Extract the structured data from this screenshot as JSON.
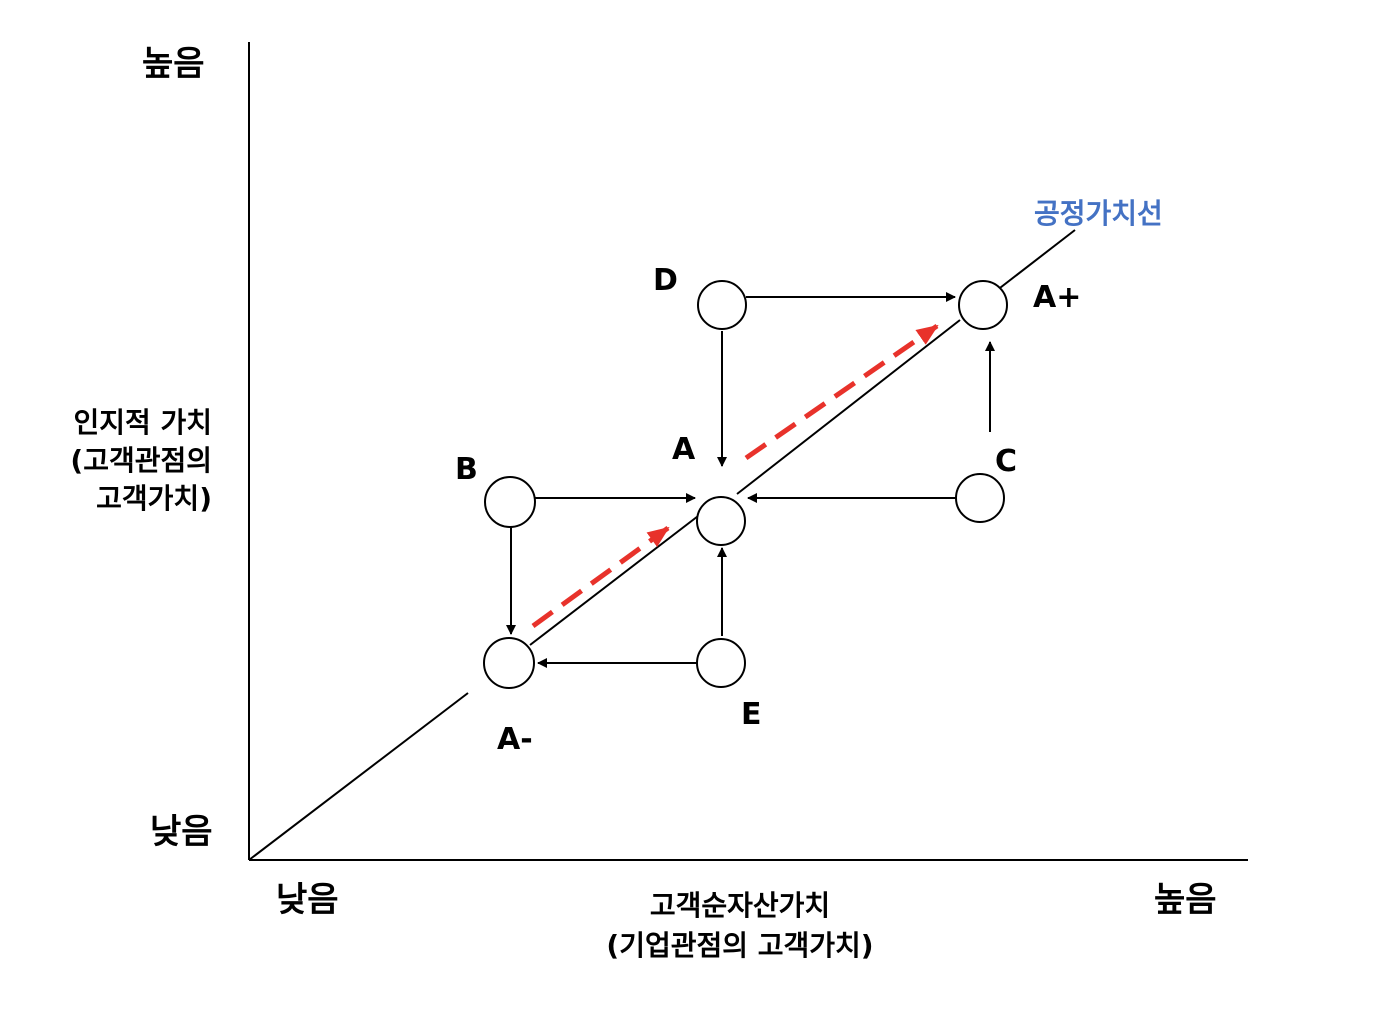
{
  "y_axis": {
    "high": "높음",
    "low": "낮음",
    "label_lines": [
      "인지적 가치",
      "(고객관점의",
      "고객가치)"
    ]
  },
  "x_axis": {
    "low": "낮음",
    "high": "높음",
    "label_lines": [
      "고객순자산가치",
      "(기업관점의 고객가치)"
    ]
  },
  "fair_value_line_label": "공정가치선",
  "nodes": {
    "a_minus": "A-",
    "a": "A",
    "a_plus": "A+",
    "b": "B",
    "c": "C",
    "d": "D",
    "e": "E"
  },
  "colors": {
    "line": "#000000",
    "highlight_arrow": "#e8322b",
    "fair_value_label": "#4472c4"
  }
}
